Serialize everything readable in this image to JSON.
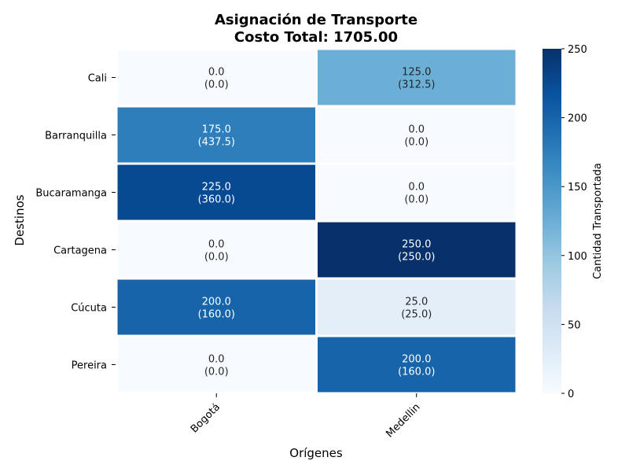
{
  "chart_data": {
    "type": "heatmap",
    "title_line1": "Asignación de Transporte",
    "title_line2": "Costo Total: 1705.00",
    "xlabel": "Orígenes",
    "ylabel": "Destinos",
    "x_categories": [
      "Bogotá",
      "Medellin"
    ],
    "y_categories": [
      "Cali",
      "Barranquilla",
      "Bucaramanga",
      "Cartagena",
      "Cúcuta",
      "Pereira"
    ],
    "values": [
      [
        0,
        125
      ],
      [
        175,
        0
      ],
      [
        225,
        0
      ],
      [
        0,
        250
      ],
      [
        200,
        25
      ],
      [
        0,
        200
      ]
    ],
    "cell_text_top": [
      [
        "0.0",
        "125.0"
      ],
      [
        "175.0",
        "0.0"
      ],
      [
        "225.0",
        "0.0"
      ],
      [
        "0.0",
        "250.0"
      ],
      [
        "200.0",
        "25.0"
      ],
      [
        "0.0",
        "200.0"
      ]
    ],
    "cell_text_bottom": [
      [
        "(0.0)",
        "(312.5)"
      ],
      [
        "(437.5)",
        "(0.0)"
      ],
      [
        "(360.0)",
        "(0.0)"
      ],
      [
        "(0.0)",
        "(250.0)"
      ],
      [
        "(160.0)",
        "(25.0)"
      ],
      [
        "(0.0)",
        "(160.0)"
      ]
    ],
    "colorbar": {
      "label": "Cantidad Transportada",
      "range": [
        0,
        250
      ],
      "ticks": [
        "0",
        "50",
        "100",
        "150",
        "200",
        "250"
      ],
      "colormap": "Blues"
    }
  }
}
